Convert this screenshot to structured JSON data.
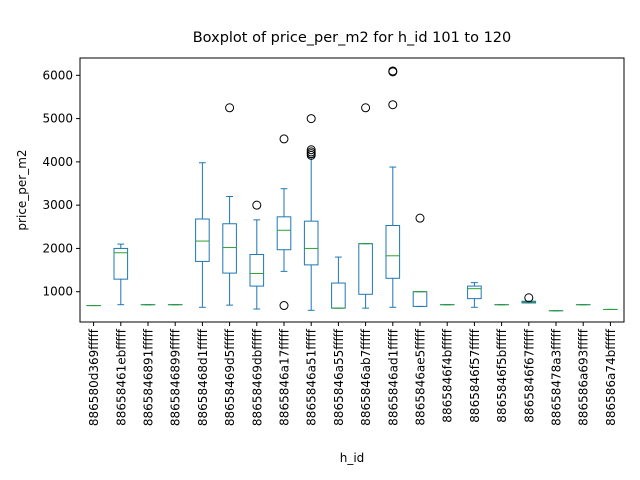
{
  "chart_data": {
    "type": "box",
    "title": "Boxplot of price_per_m2 for h_id 101 to 120",
    "xlabel": "h_id",
    "ylabel": "price_per_m2",
    "ylim": [
      300,
      6400
    ],
    "yticks": [
      1000,
      2000,
      3000,
      4000,
      5000,
      6000
    ],
    "grid": false,
    "colors": {
      "box": "#1f77b4",
      "median": "#2ca02c",
      "flier": "#000000"
    },
    "categories": [
      "886580d369fffff",
      "88658461ebfffff",
      "8865846891fffff",
      "8865846899fffff",
      "88658468d1fffff",
      "88658469d5fffff",
      "88658469dbfffff",
      "8865846a17fffff",
      "8865846a51fffff",
      "8865846a55fffff",
      "8865846ab7fffff",
      "8865846ad1fffff",
      "8865846ae5fffff",
      "8865846f4bfffff",
      "8865846f57fffff",
      "8865846f5bfffff",
      "8865846f67fffff",
      "88658478a3fffff",
      "886586a693fffff",
      "886586a74bfffff"
    ],
    "boxes": [
      {
        "whislo": 680,
        "q1": 680,
        "med": 680,
        "q3": 680,
        "whishi": 680,
        "fliers": []
      },
      {
        "whislo": 700,
        "q1": 1290,
        "med": 1900,
        "q3": 2000,
        "whishi": 2100,
        "fliers": []
      },
      {
        "whislo": 700,
        "q1": 700,
        "med": 700,
        "q3": 700,
        "whishi": 700,
        "fliers": []
      },
      {
        "whislo": 700,
        "q1": 700,
        "med": 700,
        "q3": 700,
        "whishi": 700,
        "fliers": []
      },
      {
        "whislo": 640,
        "q1": 1700,
        "med": 2170,
        "q3": 2680,
        "whishi": 3980,
        "fliers": []
      },
      {
        "whislo": 690,
        "q1": 1430,
        "med": 2020,
        "q3": 2570,
        "whishi": 3200,
        "fliers": [
          5250
        ]
      },
      {
        "whislo": 600,
        "q1": 1130,
        "med": 1420,
        "q3": 1860,
        "whishi": 2660,
        "fliers": [
          3000
        ]
      },
      {
        "whislo": 1470,
        "q1": 1970,
        "med": 2420,
        "q3": 2730,
        "whishi": 3380,
        "fliers": [
          4530,
          680
        ]
      },
      {
        "whislo": 570,
        "q1": 1620,
        "med": 2000,
        "q3": 2630,
        "whishi": 4100,
        "fliers": [
          5000,
          4280,
          4230,
          4190,
          4150
        ]
      },
      {
        "whislo": 620,
        "q1": 620,
        "med": 620,
        "q3": 1200,
        "whishi": 1800,
        "fliers": []
      },
      {
        "whislo": 620,
        "q1": 940,
        "med": 2110,
        "q3": 2110,
        "whishi": 2110,
        "fliers": [
          5250
        ]
      },
      {
        "whislo": 640,
        "q1": 1310,
        "med": 1830,
        "q3": 2530,
        "whishi": 3880,
        "fliers": [
          6100,
          6080,
          5320
        ]
      },
      {
        "whislo": 660,
        "q1": 660,
        "med": 1000,
        "q3": 1000,
        "whishi": 1000,
        "fliers": [
          2700
        ]
      },
      {
        "whislo": 700,
        "q1": 700,
        "med": 700,
        "q3": 700,
        "whishi": 700,
        "fliers": []
      },
      {
        "whislo": 640,
        "q1": 840,
        "med": 1070,
        "q3": 1130,
        "whishi": 1210,
        "fliers": []
      },
      {
        "whislo": 700,
        "q1": 700,
        "med": 700,
        "q3": 700,
        "whishi": 700,
        "fliers": []
      },
      {
        "whislo": 740,
        "q1": 740,
        "med": 760,
        "q3": 780,
        "whishi": 780,
        "fliers": [
          860
        ]
      },
      {
        "whislo": 560,
        "q1": 560,
        "med": 560,
        "q3": 560,
        "whishi": 560,
        "fliers": []
      },
      {
        "whislo": 700,
        "q1": 700,
        "med": 700,
        "q3": 700,
        "whishi": 700,
        "fliers": []
      },
      {
        "whislo": 590,
        "q1": 590,
        "med": 590,
        "q3": 590,
        "whishi": 590,
        "fliers": []
      }
    ]
  }
}
